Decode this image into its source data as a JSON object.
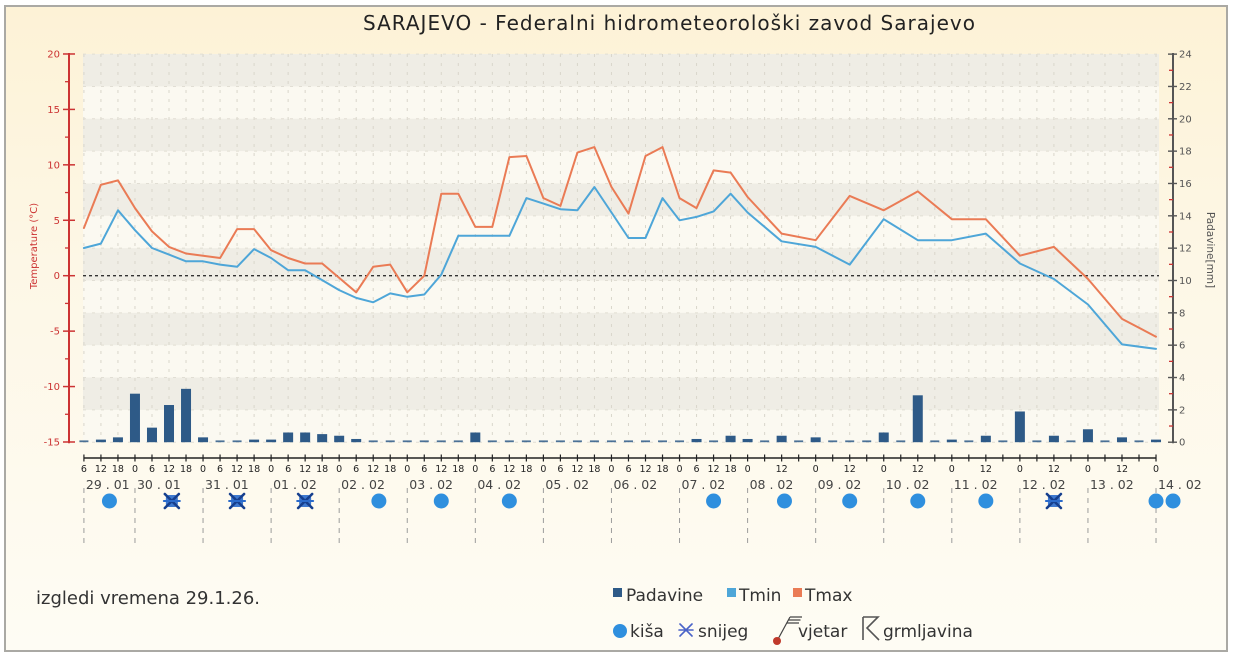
{
  "page": {
    "footer_note": "izgledi vremena 29.1.26."
  },
  "legend": {
    "series": [
      {
        "label": "Padavine",
        "color": "#2e5a87"
      },
      {
        "label": "Tmin",
        "color": "#4ea6d8"
      },
      {
        "label": "Tmax",
        "color": "#ea7b55"
      }
    ],
    "symbols": [
      {
        "label": "kiša",
        "icon": "rain-dot-icon",
        "color": "#2f8fde"
      },
      {
        "label": "snijeg",
        "icon": "snow-icon",
        "color": "#4a63c8"
      },
      {
        "label": "vjetar",
        "icon": "wind-barb-icon",
        "color": "#c0392b"
      },
      {
        "label": "grmljavina",
        "icon": "thunderstorm-icon",
        "color": "#555555"
      }
    ]
  },
  "chart_data": {
    "type": "line",
    "title": "SARAJEVO - Federalni hidrometeorološki zavod Sarajevo",
    "xlabel": "",
    "ylabel": "Temperature (°C)",
    "y2label": "Padavine[mm]",
    "ylim": [
      -15,
      20
    ],
    "y2lim": [
      0,
      24
    ],
    "yticks": [
      20,
      15,
      10,
      5,
      0,
      -5,
      -10,
      -15
    ],
    "y2ticks": [
      0,
      2,
      4,
      6,
      8,
      10,
      12,
      14,
      16,
      18,
      20,
      22,
      24
    ],
    "reference_line_y": 0,
    "grid": true,
    "legend_position": "bottom",
    "colors": {
      "axis_left": "#cc3333",
      "axis_right": "#555555",
      "rain": "#2f8fde",
      "snow": "#2a6acb",
      "snow_dark": "#163f8e"
    },
    "x_axis": {
      "days": [
        {
          "date": "29.01",
          "label": "29 . 01",
          "hour_labels": [
            "6",
            "12",
            "18"
          ]
        },
        {
          "date": "30.01",
          "label": "30 . 01",
          "hour_labels": [
            "0",
            "6",
            "12",
            "18"
          ]
        },
        {
          "date": "31.01",
          "label": "31 . 01",
          "hour_labels": [
            "0",
            "6",
            "12",
            "18"
          ]
        },
        {
          "date": "01.02",
          "label": "01 . 02",
          "hour_labels": [
            "0",
            "6",
            "12",
            "18"
          ]
        },
        {
          "date": "02.02",
          "label": "02 . 02",
          "hour_labels": [
            "0",
            "6",
            "12",
            "18"
          ]
        },
        {
          "date": "03.02",
          "label": "03 . 02",
          "hour_labels": [
            "0",
            "6",
            "12",
            "18"
          ]
        },
        {
          "date": "04.02",
          "label": "04 . 02",
          "hour_labels": [
            "0",
            "6",
            "12",
            "18"
          ]
        },
        {
          "date": "05.02",
          "label": "05 . 02",
          "hour_labels": [
            "0",
            "6",
            "12",
            "18"
          ]
        },
        {
          "date": "06.02",
          "label": "06 . 02",
          "hour_labels": [
            "0",
            "6",
            "12",
            "18"
          ]
        },
        {
          "date": "07.02",
          "label": "07 . 02",
          "hour_labels": [
            "0",
            "6",
            "12",
            "18"
          ]
        },
        {
          "date": "08.02",
          "label": "08 . 02",
          "hour_labels": [
            "0",
            "12"
          ]
        },
        {
          "date": "09.02",
          "label": "09 . 02",
          "hour_labels": [
            "0",
            "12"
          ]
        },
        {
          "date": "10.02",
          "label": "10 . 02",
          "hour_labels": [
            "0",
            "12"
          ]
        },
        {
          "date": "11.02",
          "label": "11 . 02",
          "hour_labels": [
            "0",
            "12"
          ]
        },
        {
          "date": "12.02",
          "label": "12 . 02",
          "hour_labels": [
            "0",
            "12"
          ]
        },
        {
          "date": "13.02",
          "label": "13 . 02",
          "hour_labels": [
            "0",
            "12"
          ]
        },
        {
          "date": "14.02",
          "label": "14 . 02",
          "hour_labels": [
            "0"
          ]
        }
      ]
    },
    "x": [
      "29.01 06",
      "29.01 12",
      "29.01 18",
      "30.01 00",
      "30.01 06",
      "30.01 12",
      "30.01 18",
      "31.01 00",
      "31.01 06",
      "31.01 12",
      "31.01 18",
      "01.02 00",
      "01.02 06",
      "01.02 12",
      "01.02 18",
      "02.02 00",
      "02.02 06",
      "02.02 12",
      "02.02 18",
      "03.02 00",
      "03.02 06",
      "03.02 12",
      "03.02 18",
      "04.02 00",
      "04.02 06",
      "04.02 12",
      "04.02 18",
      "05.02 00",
      "05.02 06",
      "05.02 12",
      "05.02 18",
      "06.02 00",
      "06.02 06",
      "06.02 12",
      "06.02 18",
      "07.02 00",
      "07.02 06",
      "07.02 12",
      "07.02 18",
      "08.02 00",
      "08.02 12",
      "09.02 00",
      "09.02 12",
      "10.02 00",
      "10.02 12",
      "11.02 00",
      "11.02 12",
      "12.02 00",
      "12.02 12",
      "13.02 00",
      "13.02 12",
      "14.02 00"
    ],
    "series": [
      {
        "name": "Tmax",
        "type": "line",
        "axis": "left",
        "color": "#ea7b55",
        "values": [
          4.3,
          8.2,
          8.6,
          6.1,
          4.0,
          2.6,
          2.0,
          1.8,
          1.6,
          4.2,
          4.2,
          2.3,
          1.6,
          1.1,
          1.1,
          -0.2,
          -1.5,
          0.8,
          1.0,
          -1.5,
          0.0,
          7.4,
          7.4,
          4.4,
          4.4,
          10.7,
          10.8,
          7.0,
          6.3,
          11.1,
          11.6,
          8.0,
          5.6,
          10.8,
          11.6,
          7.0,
          6.1,
          9.5,
          9.3,
          7.1,
          3.8,
          3.2,
          7.2,
          5.9,
          7.6,
          5.1,
          5.1,
          1.8,
          2.6,
          -0.3,
          -3.9,
          -5.5
        ]
      },
      {
        "name": "Tmin",
        "type": "line",
        "axis": "left",
        "color": "#4ea6d8",
        "values": [
          2.5,
          2.9,
          5.9,
          4.1,
          2.5,
          1.9,
          1.3,
          1.3,
          1.0,
          0.8,
          2.4,
          1.6,
          0.5,
          0.5,
          -0.4,
          -1.3,
          -2.0,
          -2.4,
          -1.6,
          -1.9,
          -1.7,
          0.1,
          3.6,
          3.6,
          3.6,
          3.6,
          7.0,
          6.5,
          6.0,
          5.9,
          8.0,
          5.7,
          3.4,
          3.4,
          7.0,
          5.0,
          5.3,
          5.8,
          7.4,
          5.7,
          3.1,
          2.6,
          1.0,
          5.1,
          3.2,
          3.2,
          3.8,
          1.1,
          -0.3,
          -2.6,
          -6.2,
          -6.6
        ]
      },
      {
        "name": "Padavine",
        "type": "bar",
        "axis": "right",
        "color": "#2e5a87",
        "x": [
          "29.01 06",
          "29.01 12",
          "29.01 18",
          "30.01 00",
          "30.01 06",
          "30.01 12",
          "30.01 18",
          "31.01 00",
          "31.01 06",
          "31.01 12",
          "31.01 18",
          "01.02 00",
          "01.02 06",
          "01.02 12",
          "01.02 18",
          "02.02 00",
          "02.02 06",
          "02.02 12",
          "02.02 18",
          "03.02 00",
          "03.02 06",
          "03.02 12",
          "03.02 18",
          "04.02 00",
          "04.02 06",
          "04.02 12",
          "04.02 18",
          "05.02 00",
          "05.02 06",
          "05.02 12",
          "05.02 18",
          "06.02 00",
          "06.02 06",
          "06.02 12",
          "06.02 18",
          "07.02 00",
          "07.02 06",
          "07.02 12",
          "07.02 18",
          "08.02 00",
          "08.02 06",
          "08.02 12",
          "08.02 18",
          "09.02 00",
          "09.02 06",
          "09.02 12",
          "09.02 18",
          "10.02 00",
          "10.02 06",
          "10.02 12",
          "10.02 18",
          "11.02 00",
          "11.02 06",
          "11.02 12",
          "11.02 18",
          "12.02 00",
          "12.02 06",
          "12.02 12",
          "12.02 18",
          "13.02 00",
          "13.02 06",
          "13.02 12",
          "13.02 18",
          "14.02 00"
        ],
        "values": [
          0.0,
          0.1,
          0.3,
          3.0,
          0.9,
          2.3,
          3.3,
          0.3,
          0.0,
          0.0,
          0.1,
          0.1,
          0.6,
          0.6,
          0.5,
          0.4,
          0.2,
          0.0,
          0.0,
          0.0,
          0.0,
          0.0,
          0.0,
          0.6,
          0.0,
          0.0,
          0.0,
          0.0,
          0.0,
          0.0,
          0.0,
          0.0,
          0.0,
          0.0,
          0.0,
          0.0,
          0.2,
          0.0,
          0.4,
          0.2,
          0.0,
          0.4,
          0.0,
          0.3,
          0.0,
          0.0,
          0.0,
          0.6,
          0.0,
          2.9,
          0.0,
          0.1,
          0.0,
          0.4,
          0.0,
          1.9,
          0.0,
          0.4,
          0.0,
          0.8,
          0.0,
          0.3,
          0.0,
          0.1
        ]
      }
    ],
    "weather_symbols": [
      {
        "date": "29.01",
        "type": "kiša",
        "hour": 15
      },
      {
        "date": "30.01",
        "type": "snijeg",
        "hour": 13
      },
      {
        "date": "31.01",
        "type": "snijeg",
        "hour": 12
      },
      {
        "date": "01.02",
        "type": "snijeg",
        "hour": 12
      },
      {
        "date": "02.02",
        "type": "kiša",
        "hour": 14
      },
      {
        "date": "03.02",
        "type": "kiša",
        "hour": 12
      },
      {
        "date": "04.02",
        "type": "kiša",
        "hour": 12
      },
      {
        "date": "07.02",
        "type": "kiša",
        "hour": 12
      },
      {
        "date": "08.02",
        "type": "kiša",
        "hour": 13
      },
      {
        "date": "09.02",
        "type": "kiša",
        "hour": 12
      },
      {
        "date": "10.02",
        "type": "kiša",
        "hour": 12
      },
      {
        "date": "11.02",
        "type": "kiša",
        "hour": 12
      },
      {
        "date": "12.02",
        "type": "snijeg",
        "hour": 12
      },
      {
        "date": "14.02",
        "type": "kiša",
        "hour": 0
      },
      {
        "date": "14.02",
        "type": "kiša",
        "hour": 6
      }
    ]
  }
}
